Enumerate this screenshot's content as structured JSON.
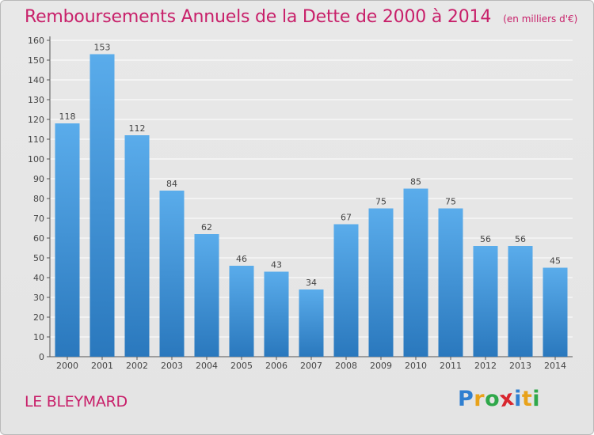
{
  "header": {
    "title": "Remboursements Annuels de la Dette de 2000 à 2014",
    "unit": "(en milliers d'€)"
  },
  "footer": {
    "commune": "LE BLEYMARD",
    "brand": [
      "P",
      "r",
      "o",
      "x",
      "i",
      "t",
      "i"
    ],
    "brand_colors": [
      "#2f7fd0",
      "#e8a21a",
      "#2fa84a",
      "#d8262e",
      "#2f7fd0",
      "#e8a21a",
      "#2fa84a"
    ]
  },
  "colors": {
    "bar_top": "#5aaceb",
    "bar_bottom": "#2a78bd",
    "grid": "#ffffff",
    "axis_text": "#444444",
    "title": "#c8206a"
  },
  "chart_data": {
    "type": "bar",
    "categories": [
      "2000",
      "2001",
      "2002",
      "2003",
      "2004",
      "2005",
      "2006",
      "2007",
      "2008",
      "2009",
      "2010",
      "2011",
      "2012",
      "2013",
      "2014"
    ],
    "values": [
      118,
      153,
      112,
      84,
      62,
      46,
      43,
      34,
      67,
      75,
      85,
      75,
      56,
      56,
      45
    ],
    "ylim": [
      0,
      160
    ],
    "yticks": [
      0,
      10,
      20,
      30,
      40,
      50,
      60,
      70,
      80,
      90,
      100,
      110,
      120,
      130,
      140,
      150,
      160
    ],
    "grid": true,
    "title": "Remboursements Annuels de la Dette de 2000 à 2014",
    "xlabel": "",
    "ylabel": ""
  }
}
